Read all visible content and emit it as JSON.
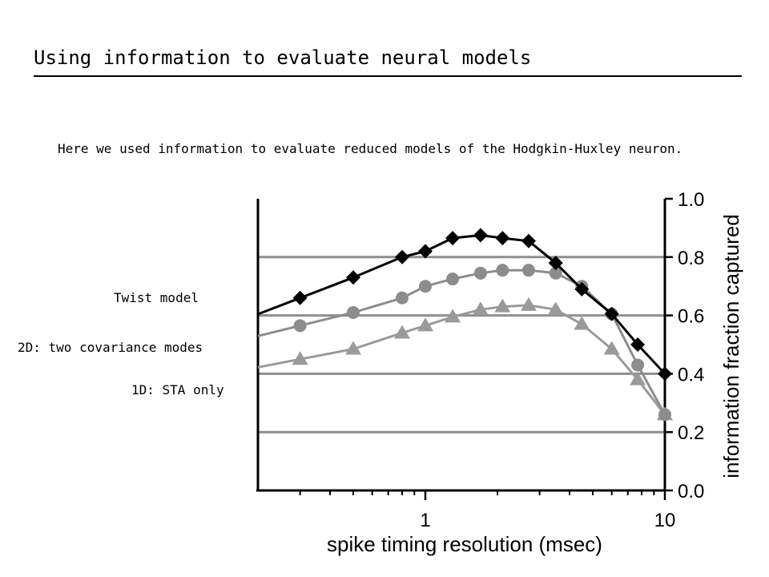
{
  "slide": {
    "title": "Using information to evaluate neural models",
    "intro": "Here we used information to evaluate reduced models of the Hodgkin-Huxley neuron."
  },
  "labels": {
    "twist": "Twist model",
    "two_d": "2D: two covariance modes",
    "one_d": "1D: STA only"
  },
  "chart_data": {
    "type": "line",
    "xlabel": "spike timing resolution (msec)",
    "ylabel": "information fraction captured",
    "xscale": "log",
    "xlim": [
      0.2,
      10
    ],
    "ylim": [
      0,
      1
    ],
    "x_tick_labels": [
      "1",
      "10"
    ],
    "y_tick_labels": [
      "0.0",
      "0.2",
      "0.4",
      "0.6",
      "0.8",
      "1.0"
    ],
    "grid": "horizontal",
    "colors": {
      "twist": "#000000",
      "two_d": "#8c8c8c",
      "one_d": "#9a9a9a",
      "grid": "#8f8f8f"
    },
    "series": [
      {
        "name": "Twist model",
        "marker": "diamond",
        "x": [
          0.3,
          0.5,
          0.8,
          1.0,
          1.3,
          1.7,
          2.1,
          2.7,
          3.5,
          4.5,
          6.0,
          7.7,
          10.0
        ],
        "y": [
          0.66,
          0.73,
          0.8,
          0.82,
          0.865,
          0.875,
          0.865,
          0.855,
          0.78,
          0.69,
          0.605,
          0.5,
          0.4
        ]
      },
      {
        "name": "2D: two covariance modes",
        "marker": "circle",
        "x": [
          0.3,
          0.5,
          0.8,
          1.0,
          1.3,
          1.7,
          2.1,
          2.7,
          3.5,
          4.5,
          6.0,
          7.7,
          10.0
        ],
        "y": [
          0.565,
          0.61,
          0.66,
          0.7,
          0.725,
          0.745,
          0.755,
          0.755,
          0.745,
          0.7,
          0.605,
          0.43,
          0.26
        ]
      },
      {
        "name": "1D: STA only",
        "marker": "triangle",
        "x": [
          0.3,
          0.5,
          0.8,
          1.0,
          1.3,
          1.7,
          2.1,
          2.7,
          3.5,
          4.5,
          6.0,
          7.7,
          10.0
        ],
        "y": [
          0.45,
          0.485,
          0.54,
          0.565,
          0.595,
          0.62,
          0.63,
          0.635,
          0.62,
          0.57,
          0.485,
          0.38,
          0.26
        ]
      }
    ]
  }
}
